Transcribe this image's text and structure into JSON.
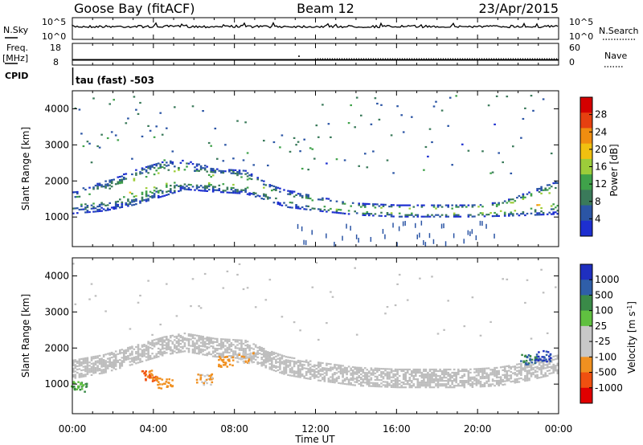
{
  "header": {
    "site": "Goose Bay (fitACF)",
    "beam": "Beam 12",
    "date": "23/Apr/2015"
  },
  "aux": {
    "nsky_label": "N.Sky",
    "nsky_ticks": [
      "10^5",
      "10^0"
    ],
    "nsearch_label": "N.Search",
    "nsearch_ticks": [
      "10^5",
      "10^0"
    ],
    "freq_label_1": "Freq.",
    "freq_label_2": "[MHz]",
    "freq_ticks": [
      "18",
      "8"
    ],
    "nave_label": "Nave",
    "nave_ticks": [
      "60",
      "0"
    ],
    "cpid_label": "CPID",
    "cpid_text": "tau (fast) -503"
  },
  "x_axis": {
    "label": "Time UT",
    "ticks": [
      "00:00",
      "04:00",
      "08:00",
      "12:00",
      "16:00",
      "20:00",
      "00:00"
    ]
  },
  "colors": {
    "power_scale": [
      "#1d2fd0",
      "#2b55a5",
      "#3a7a5a",
      "#3fa24a",
      "#9ccd3a",
      "#f0c010",
      "#f08d10",
      "#e64010",
      "#d40000"
    ],
    "velocity_scale": [
      "#e00000",
      "#f05010",
      "#f09020",
      "#c8c8c8",
      "#c8c8c8",
      "#60c040",
      "#3a8a48",
      "#2f5ea8",
      "#1f2fc0"
    ],
    "ground_scatter": "#bdbdbd"
  },
  "chart_data": [
    {
      "type": "heatmap",
      "title": "",
      "xlabel": "Time UT",
      "ylabel": "Slant Range [km]",
      "x_unit": "hours UT",
      "xlim": [
        0,
        24
      ],
      "ylim": [
        180,
        4500
      ],
      "yticks": [
        "4000",
        "3000",
        "2000",
        "1000"
      ],
      "colorbar": {
        "label": "Power [dB]",
        "ticks": [
          "28",
          "24",
          "20",
          "16",
          "12",
          "8",
          "4"
        ],
        "range": [
          0,
          30
        ]
      },
      "scatter_bands": [
        {
          "x": [
            0.0,
            1.5,
            3.0,
            4.5,
            5.5,
            7.0,
            8.5,
            9.5,
            10.5,
            12.0,
            14.0,
            16.0,
            18.0,
            19.5,
            21.0,
            22.5,
            24.0
          ],
          "range_center": [
            1400,
            1550,
            1800,
            2050,
            2150,
            2000,
            1950,
            1700,
            1500,
            1350,
            1200,
            1150,
            1150,
            1150,
            1200,
            1350,
            1550
          ],
          "half_width": [
            200,
            250,
            300,
            300,
            250,
            200,
            200,
            150,
            150,
            120,
            100,
            100,
            100,
            100,
            120,
            200,
            300
          ],
          "peak_power": [
            12,
            16,
            20,
            20,
            18,
            18,
            18,
            16,
            14,
            18,
            20,
            20,
            22,
            22,
            24,
            24,
            20
          ]
        }
      ]
    },
    {
      "type": "heatmap",
      "title": "",
      "xlabel": "Time UT",
      "ylabel": "Slant Range [km]",
      "x_unit": "hours UT",
      "xlim": [
        0,
        24
      ],
      "ylim": [
        180,
        4500
      ],
      "yticks": [
        "4000",
        "3000",
        "2000",
        "1000"
      ],
      "colorbar": {
        "label": "Velocity [m s^-1]",
        "ticks": [
          "1000",
          "500",
          "100",
          "25",
          "-25",
          "-100",
          "-500",
          "-1000"
        ]
      },
      "ground_scatter_band": {
        "x": [
          0.0,
          1.5,
          3.0,
          4.5,
          5.5,
          7.0,
          8.5,
          9.5,
          10.5,
          12.0,
          14.0,
          16.0,
          18.0,
          19.5,
          21.0,
          22.5,
          24.0
        ],
        "range_center": [
          1400,
          1550,
          1800,
          2050,
          2150,
          2000,
          1950,
          1700,
          1500,
          1350,
          1200,
          1150,
          1150,
          1150,
          1200,
          1350,
          1550
        ]
      },
      "velocity_patches": [
        {
          "x": 0.3,
          "range": 950,
          "velocity": 100
        },
        {
          "x": 3.8,
          "range": 1250,
          "velocity": -500
        },
        {
          "x": 4.5,
          "range": 1050,
          "velocity": -300
        },
        {
          "x": 6.5,
          "range": 1150,
          "velocity": -100
        },
        {
          "x": 7.5,
          "range": 1650,
          "velocity": -300
        },
        {
          "x": 8.5,
          "range": 1750,
          "velocity": -100
        },
        {
          "x": 22.5,
          "range": 1700,
          "velocity": 500
        },
        {
          "x": 23.2,
          "range": 1800,
          "velocity": 1000
        }
      ]
    }
  ]
}
